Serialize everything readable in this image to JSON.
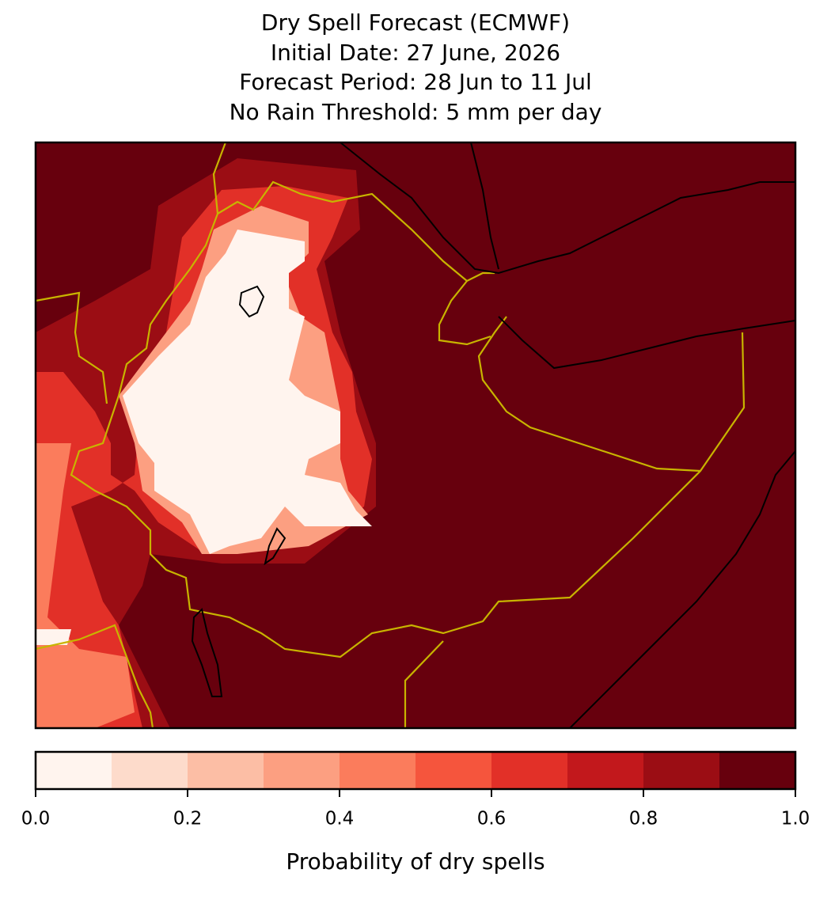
{
  "chart_data": {
    "type": "map",
    "title": [
      "Dry Spell Forecast (ECMWF)",
      "Initial Date: 27 June, 2026",
      "Forecast Period: 28 Jun to 11 Jul",
      "No Rain Threshold: 5 mm per day"
    ],
    "colorbar": {
      "label": "Probability of dry spells",
      "bounds": [
        0,
        0.1,
        0.2,
        0.3,
        0.4,
        0.5,
        0.6,
        0.7,
        0.8,
        0.9,
        1
      ],
      "colors": [
        "#fff4ee",
        "#fddbcb",
        "#fcbea5",
        "#fc9f81",
        "#fb7c5c",
        "#f5553d",
        "#e23028",
        "#c2181c",
        "#9b0d14",
        "#67000d"
      ],
      "xlim": [
        0,
        1
      ],
      "xticks": [
        {
          "value": 0,
          "label": "0.0"
        },
        {
          "value": 0.2,
          "label": "0.2"
        },
        {
          "value": 0.4,
          "label": "0.4"
        },
        {
          "value": 0.6,
          "label": "0.6"
        },
        {
          "value": 0.8,
          "label": "0.8"
        },
        {
          "value": 1,
          "label": "1.0"
        }
      ]
    }
  }
}
